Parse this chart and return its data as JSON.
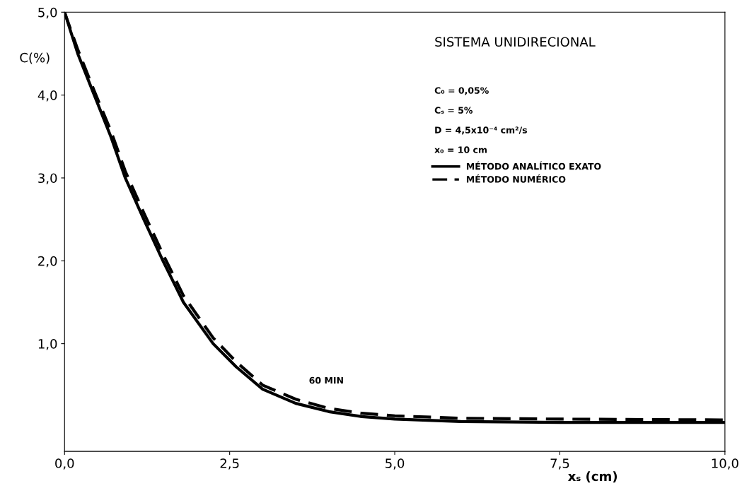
{
  "chart_data": {
    "type": "line",
    "title": "SISTEMA UNIDIRECIONAL",
    "xlabel": "xₛ (cm)",
    "ylabel": "C(%)",
    "xlim": [
      0,
      10
    ],
    "ylim": [
      -0.3,
      5.0
    ],
    "xticks": [
      {
        "value": 0,
        "label": "0,0"
      },
      {
        "value": 2.5,
        "label": "2,5"
      },
      {
        "value": 5,
        "label": "5,0"
      },
      {
        "value": 7.5,
        "label": "7,5"
      },
      {
        "value": 10,
        "label": "10,0"
      }
    ],
    "yticks": [
      {
        "value": 1,
        "label": "1,0"
      },
      {
        "value": 2,
        "label": "2,0"
      },
      {
        "value": 3,
        "label": "3,0"
      },
      {
        "value": 4,
        "label": "4,0"
      },
      {
        "value": 5,
        "label": "5,0"
      }
    ],
    "grid": false,
    "legend": "top right",
    "series": [
      {
        "name": "MÉTODO ANALÍTICO EXATO",
        "color": "#000000",
        "line_style": "solid",
        "x": [
          0,
          0.2,
          0.45,
          0.7,
          0.92,
          1.2,
          1.49,
          1.8,
          2.25,
          2.6,
          3.0,
          3.5,
          4.0,
          4.5,
          5.0,
          6.0,
          7.5,
          10.0
        ],
        "values": [
          5.0,
          4.5,
          4.0,
          3.5,
          3.0,
          2.5,
          2.0,
          1.5,
          1.0,
          0.72,
          0.45,
          0.28,
          0.18,
          0.12,
          0.09,
          0.06,
          0.05,
          0.05
        ]
      },
      {
        "name": "MÉTODO NUMÉRICO",
        "color": "#000000",
        "line_style": "dashed",
        "x": [
          0,
          0.2,
          0.45,
          0.7,
          0.92,
          1.2,
          1.49,
          1.8,
          2.25,
          2.6,
          3.0,
          3.5,
          4.0,
          4.5,
          5.0,
          6.0,
          7.5,
          10.0
        ],
        "values": [
          5.0,
          4.55,
          4.05,
          3.57,
          3.08,
          2.58,
          2.08,
          1.58,
          1.07,
          0.78,
          0.5,
          0.33,
          0.22,
          0.16,
          0.13,
          0.1,
          0.09,
          0.08
        ]
      }
    ],
    "annotations": [
      "C₀ = 0,05%",
      "Cₛ = 5%",
      "D = 4,5x10⁻⁴ cm²/s",
      "x₀ = 10 cm",
      "60 MIN"
    ]
  }
}
